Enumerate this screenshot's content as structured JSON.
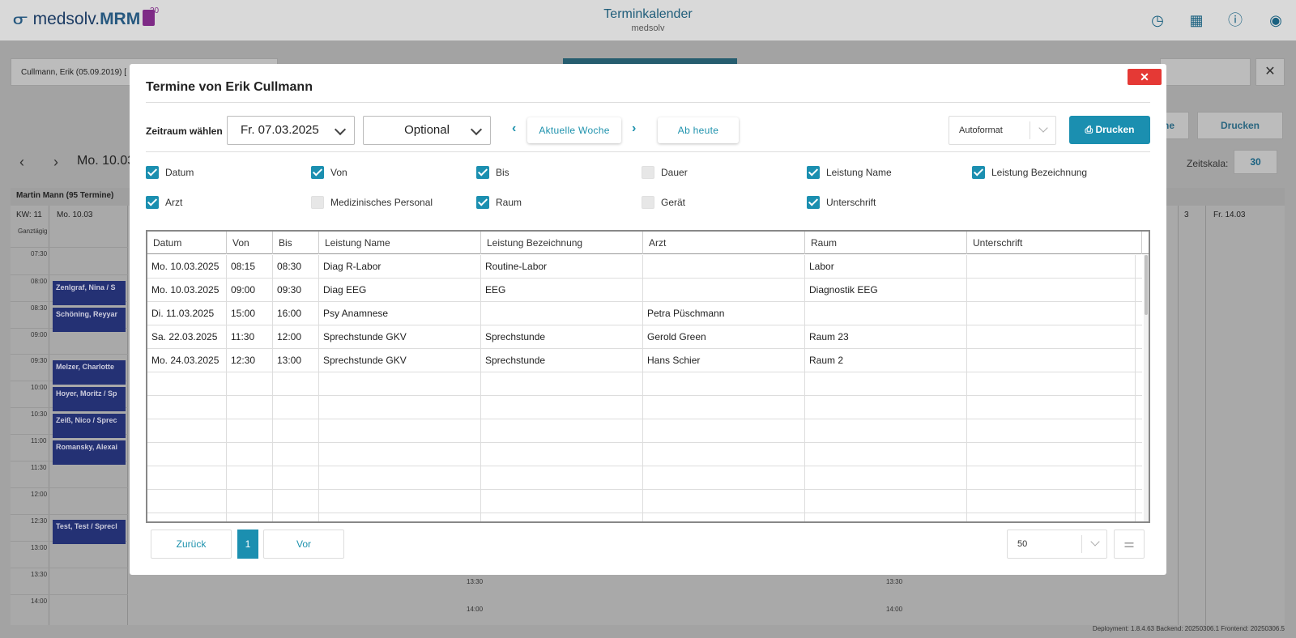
{
  "app": {
    "logo_prefix": "medsolv.",
    "logo_brand": "MRM",
    "logo_badge_number": "20",
    "title": "Terminkalender",
    "subtitle": "medsolv"
  },
  "background": {
    "patient": "Cullmann, Erik (05.09.2019) [",
    "btn_ne": "ne",
    "btn_drucken": "Drucken",
    "date": "Mo. 10.03",
    "zeitskala_label": "Zeitskala:",
    "zeitskala_value": "30",
    "doctor": "Martin Mann (95 Termine)",
    "kw": "KW: 11",
    "day1": "Mo. 10.03",
    "day_right1": "3",
    "day_right2": "Fr. 14.03",
    "allday": "Ganztägig",
    "times": [
      "07:30",
      "08:00",
      "08:30",
      "09:00",
      "09:30",
      "10:00",
      "10:30",
      "11:00",
      "11:30",
      "12:00",
      "12:30",
      "13:00",
      "13:30",
      "14:00"
    ],
    "times_mid": [
      "13:30",
      "14:00"
    ],
    "times_right": [
      "13:30",
      "14:00"
    ],
    "appointments": [
      "Zenlgraf, Nina / S",
      "Schöning, Reyyar",
      "Melzer, Charlotte",
      "Hoyer, Moritz / Sp",
      "Zeiß, Nico / Sprec",
      "Romansky, Alexai",
      "Test, Test / Sprecl"
    ],
    "footer": "Deployment: 1.8.4.63   Backend: 20250306.1   Frontend: 20250306.5"
  },
  "modal": {
    "title": "Termine von Erik Cullmann",
    "close_symbol": "✕",
    "zeitraum_label": "Zeitraum wählen",
    "date_value": "Fr. 07.03.2025",
    "optional_value": "Optional",
    "current_week": "Aktuelle Woche",
    "from_today": "Ab heute",
    "autoformat": "Autoformat",
    "print_label": "Drucken",
    "checkboxes": [
      {
        "label": "Datum",
        "checked": true
      },
      {
        "label": "Von",
        "checked": true
      },
      {
        "label": "Bis",
        "checked": true
      },
      {
        "label": "Dauer",
        "checked": false
      },
      {
        "label": "Leistung Name",
        "checked": true
      },
      {
        "label": "Leistung Bezeichnung",
        "checked": true
      },
      {
        "label": "Arzt",
        "checked": true
      },
      {
        "label": "Medizinisches Personal",
        "checked": false
      },
      {
        "label": "Raum",
        "checked": true
      },
      {
        "label": "Gerät",
        "checked": false
      },
      {
        "label": "Unterschrift",
        "checked": true
      }
    ],
    "table": {
      "headers": [
        "Datum",
        "Von",
        "Bis",
        "Leistung Name",
        "Leistung Bezeichnung",
        "Arzt",
        "Raum",
        "Unterschrift"
      ],
      "rows": [
        [
          "Mo. 10.03.2025",
          "08:15",
          "08:30",
          "Diag R-Labor",
          "Routine-Labor",
          "",
          "Labor",
          ""
        ],
        [
          "Mo. 10.03.2025",
          "09:00",
          "09:30",
          "Diag EEG",
          "EEG",
          "",
          "Diagnostik EEG",
          ""
        ],
        [
          "Di. 11.03.2025",
          "15:00",
          "16:00",
          "Psy Anamnese",
          "",
          "Petra Püschmann",
          "",
          ""
        ],
        [
          "Sa. 22.03.2025",
          "11:30",
          "12:00",
          "Sprechstunde GKV",
          "Sprechstunde",
          "Gerold Green",
          "Raum 23",
          ""
        ],
        [
          "Mo. 24.03.2025",
          "12:30",
          "13:00",
          "Sprechstunde GKV",
          "Sprechstunde",
          "Hans Schier",
          "Raum 2",
          ""
        ]
      ]
    },
    "pagination": {
      "back": "Zurück",
      "page": "1",
      "next": "Vor",
      "page_size": "50"
    }
  }
}
